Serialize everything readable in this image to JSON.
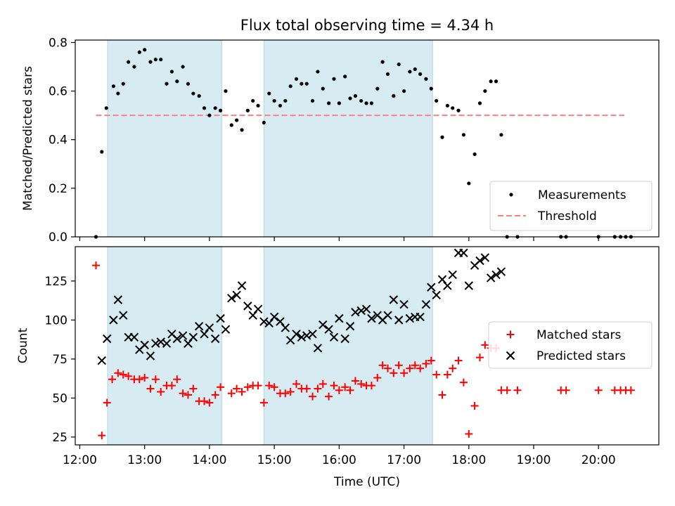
{
  "figure": {
    "title": "Flux total observing time = 4.34 h"
  },
  "colors": {
    "shade": "#add8e6",
    "measure": "#000000",
    "threshold": "#ff7f7f",
    "matched": "#ff0000",
    "predicted": "#000000"
  },
  "chart_data": [
    {
      "type": "scatter",
      "xlabel": "",
      "ylabel": "Matched/Predicted stars",
      "x_unit": "hours (UTC)",
      "xlim": [
        11.93,
        20.93
      ],
      "ylim": [
        0,
        0.81
      ],
      "yticks": [
        0.0,
        0.2,
        0.4,
        0.6,
        0.8
      ],
      "ytick_labels": [
        "0.0",
        "0.2",
        "0.4",
        "0.6",
        "0.8"
      ],
      "shaded_intervals": [
        [
          12.43,
          14.19
        ],
        [
          14.84,
          17.44
        ]
      ],
      "threshold": {
        "name": "Threshold",
        "y": 0.5,
        "x_range": [
          12.25,
          20.4
        ],
        "style": "dashed"
      },
      "legend": {
        "position": "lower right",
        "entries": [
          "Measurements",
          "Threshold"
        ]
      },
      "series": [
        {
          "name": "Measurements",
          "marker": "dot",
          "points": [
            [
              12.25,
              0.0
            ],
            [
              12.34,
              0.35
            ],
            [
              12.41,
              0.53
            ],
            [
              12.52,
              0.62
            ],
            [
              12.59,
              0.59
            ],
            [
              12.67,
              0.63
            ],
            [
              12.75,
              0.72
            ],
            [
              12.84,
              0.7
            ],
            [
              12.92,
              0.76
            ],
            [
              13.0,
              0.77
            ],
            [
              13.09,
              0.72
            ],
            [
              13.17,
              0.73
            ],
            [
              13.25,
              0.73
            ],
            [
              13.34,
              0.63
            ],
            [
              13.42,
              0.68
            ],
            [
              13.5,
              0.64
            ],
            [
              13.59,
              0.7
            ],
            [
              13.67,
              0.63
            ],
            [
              13.75,
              0.59
            ],
            [
              13.84,
              0.58
            ],
            [
              13.92,
              0.53
            ],
            [
              14.0,
              0.5
            ],
            [
              14.09,
              0.53
            ],
            [
              14.17,
              0.52
            ],
            [
              14.25,
              0.6
            ],
            [
              14.34,
              0.46
            ],
            [
              14.42,
              0.48
            ],
            [
              14.5,
              0.44
            ],
            [
              14.59,
              0.52
            ],
            [
              14.67,
              0.56
            ],
            [
              14.75,
              0.54
            ],
            [
              14.84,
              0.47
            ],
            [
              14.92,
              0.59
            ],
            [
              15.0,
              0.56
            ],
            [
              15.09,
              0.54
            ],
            [
              15.17,
              0.56
            ],
            [
              15.25,
              0.62
            ],
            [
              15.34,
              0.65
            ],
            [
              15.42,
              0.63
            ],
            [
              15.5,
              0.63
            ],
            [
              15.59,
              0.56
            ],
            [
              15.67,
              0.68
            ],
            [
              15.75,
              0.61
            ],
            [
              15.84,
              0.55
            ],
            [
              15.92,
              0.65
            ],
            [
              16.0,
              0.55
            ],
            [
              16.09,
              0.66
            ],
            [
              16.17,
              0.57
            ],
            [
              16.25,
              0.58
            ],
            [
              16.34,
              0.56
            ],
            [
              16.42,
              0.55
            ],
            [
              16.5,
              0.55
            ],
            [
              16.59,
              0.61
            ],
            [
              16.67,
              0.72
            ],
            [
              16.75,
              0.67
            ],
            [
              16.84,
              0.58
            ],
            [
              16.92,
              0.71
            ],
            [
              17.0,
              0.6
            ],
            [
              17.09,
              0.68
            ],
            [
              17.17,
              0.69
            ],
            [
              17.25,
              0.67
            ],
            [
              17.34,
              0.65
            ],
            [
              17.42,
              0.61
            ],
            [
              17.5,
              0.56
            ],
            [
              17.59,
              0.41
            ],
            [
              17.67,
              0.54
            ],
            [
              17.75,
              0.53
            ],
            [
              17.84,
              0.52
            ],
            [
              17.92,
              0.42
            ],
            [
              18.0,
              0.22
            ],
            [
              18.09,
              0.34
            ],
            [
              18.17,
              0.55
            ],
            [
              18.25,
              0.6
            ],
            [
              18.34,
              0.64
            ],
            [
              18.42,
              0.64
            ],
            [
              18.5,
              0.42
            ],
            [
              18.59,
              0.0
            ],
            [
              18.75,
              0.0
            ],
            [
              19.42,
              0.0
            ],
            [
              19.5,
              0.0
            ],
            [
              20.0,
              0.0
            ],
            [
              20.25,
              0.0
            ],
            [
              20.34,
              0.0
            ],
            [
              20.42,
              0.0
            ],
            [
              20.5,
              0.0
            ]
          ]
        }
      ]
    },
    {
      "type": "scatter",
      "xlabel": "Time (UTC)",
      "ylabel": "Count",
      "x_unit": "hours (UTC)",
      "xlim": [
        11.93,
        20.93
      ],
      "ylim": [
        20,
        147
      ],
      "xticks": [
        12,
        13,
        14,
        15,
        16,
        17,
        18,
        19,
        20
      ],
      "xtick_labels": [
        "12:00",
        "13:00",
        "14:00",
        "15:00",
        "16:00",
        "17:00",
        "18:00",
        "19:00",
        "20:00"
      ],
      "yticks": [
        25,
        50,
        75,
        100,
        125
      ],
      "ytick_labels": [
        "25",
        "50",
        "75",
        "100",
        "125"
      ],
      "shaded_intervals": [
        [
          12.43,
          14.19
        ],
        [
          14.84,
          17.44
        ]
      ],
      "legend": {
        "position": "center right",
        "entries": [
          "Matched stars",
          "Predicted stars"
        ]
      },
      "series": [
        {
          "name": "Matched stars",
          "marker": "plus",
          "points": [
            [
              12.25,
              135
            ],
            [
              12.34,
              26
            ],
            [
              12.42,
              47
            ],
            [
              12.5,
              62
            ],
            [
              12.59,
              66
            ],
            [
              12.67,
              65
            ],
            [
              12.75,
              64
            ],
            [
              12.84,
              62
            ],
            [
              12.92,
              62
            ],
            [
              13.0,
              63
            ],
            [
              13.09,
              56
            ],
            [
              13.17,
              62
            ],
            [
              13.25,
              54
            ],
            [
              13.34,
              58
            ],
            [
              13.42,
              58
            ],
            [
              13.5,
              62
            ],
            [
              13.59,
              53
            ],
            [
              13.67,
              52
            ],
            [
              13.75,
              56
            ],
            [
              13.84,
              48
            ],
            [
              13.92,
              48
            ],
            [
              14.0,
              47
            ],
            [
              14.09,
              52
            ],
            [
              14.17,
              57
            ],
            [
              14.34,
              53
            ],
            [
              14.42,
              56
            ],
            [
              14.5,
              54
            ],
            [
              14.59,
              57
            ],
            [
              14.67,
              58
            ],
            [
              14.75,
              58
            ],
            [
              14.84,
              47
            ],
            [
              14.92,
              58
            ],
            [
              15.0,
              57
            ],
            [
              15.09,
              53
            ],
            [
              15.17,
              53
            ],
            [
              15.25,
              54
            ],
            [
              15.34,
              59
            ],
            [
              15.42,
              56
            ],
            [
              15.5,
              56
            ],
            [
              15.59,
              51
            ],
            [
              15.67,
              56
            ],
            [
              15.75,
              59
            ],
            [
              15.84,
              51
            ],
            [
              15.92,
              58
            ],
            [
              16.0,
              55
            ],
            [
              16.09,
              57
            ],
            [
              16.17,
              55
            ],
            [
              16.25,
              61
            ],
            [
              16.34,
              59
            ],
            [
              16.42,
              58
            ],
            [
              16.5,
              58
            ],
            [
              16.59,
              63
            ],
            [
              16.67,
              71
            ],
            [
              16.75,
              69
            ],
            [
              16.84,
              66
            ],
            [
              16.92,
              71
            ],
            [
              17.0,
              66
            ],
            [
              17.09,
              69
            ],
            [
              17.17,
              71
            ],
            [
              17.25,
              69
            ],
            [
              17.34,
              72
            ],
            [
              17.42,
              74
            ],
            [
              17.5,
              65
            ],
            [
              17.59,
              52
            ],
            [
              17.67,
              65
            ],
            [
              17.75,
              69
            ],
            [
              17.84,
              74
            ],
            [
              17.92,
              60
            ],
            [
              18.0,
              27
            ],
            [
              18.09,
              45
            ],
            [
              18.17,
              76
            ],
            [
              18.25,
              84
            ],
            [
              18.34,
              82
            ],
            [
              18.42,
              82
            ],
            [
              18.5,
              55
            ],
            [
              18.59,
              55
            ],
            [
              18.75,
              55
            ],
            [
              19.42,
              55
            ],
            [
              19.5,
              55
            ],
            [
              20.0,
              55
            ],
            [
              20.25,
              55
            ],
            [
              20.34,
              55
            ],
            [
              20.42,
              55
            ],
            [
              20.5,
              55
            ]
          ]
        },
        {
          "name": "Predicted stars",
          "marker": "x",
          "points": [
            [
              12.34,
              74
            ],
            [
              12.42,
              88
            ],
            [
              12.52,
              100
            ],
            [
              12.59,
              113
            ],
            [
              12.67,
              103
            ],
            [
              12.75,
              89
            ],
            [
              12.84,
              89
            ],
            [
              12.92,
              81
            ],
            [
              13.0,
              84
            ],
            [
              13.09,
              77
            ],
            [
              13.17,
              85
            ],
            [
              13.25,
              86
            ],
            [
              13.34,
              85
            ],
            [
              13.42,
              91
            ],
            [
              13.5,
              88
            ],
            [
              13.59,
              90
            ],
            [
              13.67,
              85
            ],
            [
              13.75,
              89
            ],
            [
              13.84,
              96
            ],
            [
              13.92,
              91
            ],
            [
              14.0,
              95
            ],
            [
              14.09,
              88
            ],
            [
              14.17,
              101
            ],
            [
              14.25,
              94
            ],
            [
              14.34,
              114
            ],
            [
              14.42,
              116
            ],
            [
              14.5,
              122
            ],
            [
              14.59,
              109
            ],
            [
              14.67,
              103
            ],
            [
              14.75,
              107
            ],
            [
              14.84,
              99
            ],
            [
              14.92,
              98
            ],
            [
              15.0,
              102
            ],
            [
              15.09,
              99
            ],
            [
              15.17,
              95
            ],
            [
              15.25,
              87
            ],
            [
              15.34,
              91
            ],
            [
              15.42,
              89
            ],
            [
              15.5,
              90
            ],
            [
              15.59,
              91
            ],
            [
              15.67,
              82
            ],
            [
              15.75,
              97
            ],
            [
              15.84,
              94
            ],
            [
              15.92,
              89
            ],
            [
              16.0,
              101
            ],
            [
              16.09,
              88
            ],
            [
              16.17,
              96
            ],
            [
              16.25,
              105
            ],
            [
              16.34,
              106
            ],
            [
              16.42,
              107
            ],
            [
              16.5,
              101
            ],
            [
              16.59,
              103
            ],
            [
              16.67,
              100
            ],
            [
              16.75,
              103
            ],
            [
              16.84,
              113
            ],
            [
              16.92,
              100
            ],
            [
              17.0,
              110
            ],
            [
              17.09,
              101
            ],
            [
              17.17,
              102
            ],
            [
              17.25,
              102
            ],
            [
              17.34,
              110
            ],
            [
              17.42,
              121
            ],
            [
              17.5,
              116
            ],
            [
              17.59,
              126
            ],
            [
              17.67,
              122
            ],
            [
              17.75,
              129
            ],
            [
              17.84,
              143
            ],
            [
              17.92,
              143
            ],
            [
              18.0,
              122
            ],
            [
              18.09,
              135
            ],
            [
              18.17,
              138
            ],
            [
              18.25,
              140
            ],
            [
              18.34,
              127
            ],
            [
              18.42,
              129
            ],
            [
              18.5,
              131
            ]
          ]
        }
      ]
    }
  ]
}
